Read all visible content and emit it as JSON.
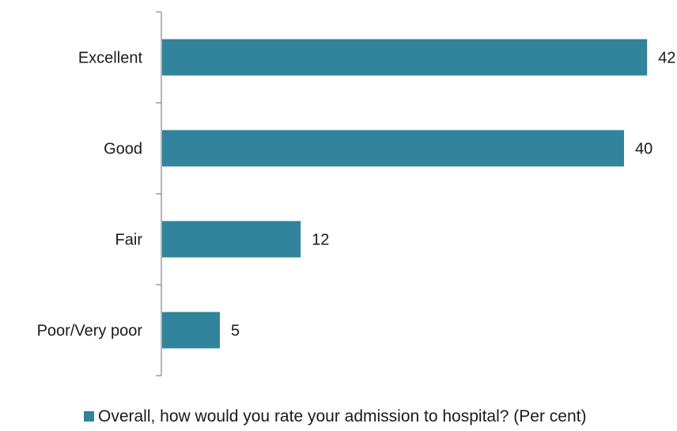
{
  "chart_data": {
    "type": "bar",
    "orientation": "horizontal",
    "categories": [
      "Excellent",
      "Good",
      "Fair",
      "Poor/Very poor"
    ],
    "series": [
      {
        "name": "Overall, how would you rate your admission to hospital? (Per cent)",
        "values": [
          42,
          40,
          12,
          5
        ],
        "color": "#31849b"
      }
    ],
    "xlim": [
      0,
      45
    ],
    "grid": false,
    "data_labels": true,
    "legend_position": "bottom"
  },
  "legend": {
    "label": "Overall, how would you rate your admission to hospital? (Per cent)"
  }
}
